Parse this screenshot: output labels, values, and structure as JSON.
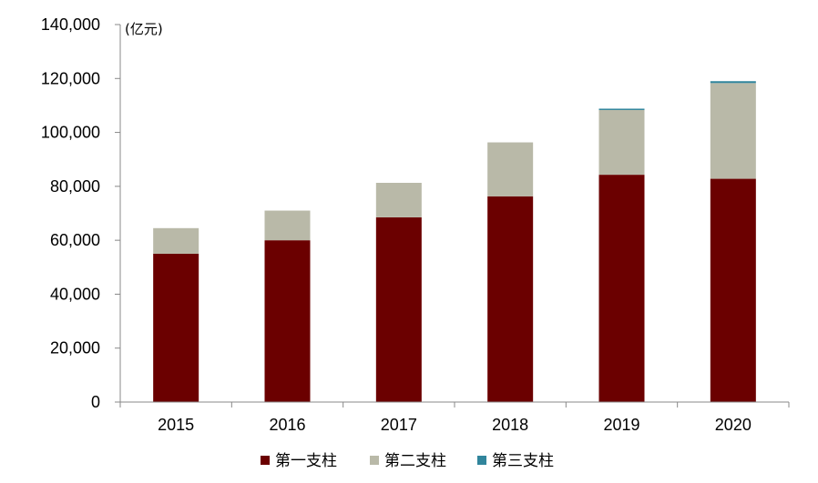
{
  "chart_data": {
    "type": "bar",
    "stacked": true,
    "unit_label": "(亿元)",
    "categories": [
      "2015",
      "2016",
      "2017",
      "2018",
      "2019",
      "2020"
    ],
    "series": [
      {
        "name": "第一支柱",
        "color": "#6b0000",
        "values": [
          55000,
          60000,
          68500,
          76300,
          84300,
          82800
        ]
      },
      {
        "name": "第二支柱",
        "color": "#b9b9a8",
        "values": [
          9500,
          11000,
          12800,
          20000,
          24000,
          35500
        ]
      },
      {
        "name": "第三支柱",
        "color": "#31859c",
        "values": [
          0,
          0,
          0,
          0,
          400,
          700
        ]
      }
    ],
    "ylim": [
      0,
      140000
    ],
    "y_ticks": [
      0,
      20000,
      40000,
      60000,
      80000,
      100000,
      120000,
      140000
    ],
    "y_tick_labels": [
      "0",
      "20,000",
      "40,000",
      "60,000",
      "80,000",
      "100,000",
      "120,000",
      "140,000"
    ],
    "grid": false,
    "legend_position": "bottom"
  }
}
